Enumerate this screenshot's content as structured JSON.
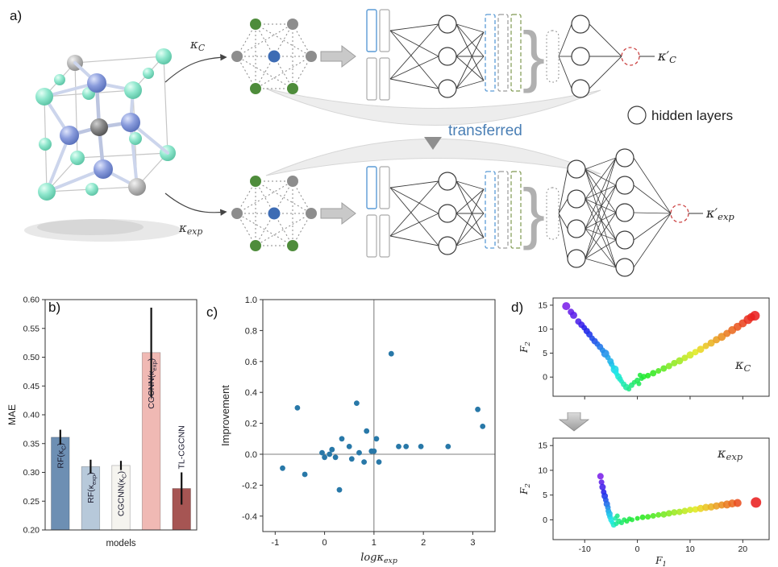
{
  "panels": {
    "a": {
      "label": "a)",
      "kappa_c": "κ~C~",
      "kappa_exp": "κ~exp~",
      "kappa_c_prime": "κ′~C~",
      "kappa_exp_prime": "κ′~exp~",
      "transferred": "transferred",
      "hidden_layers": "hidden layers",
      "brace": "}"
    },
    "b": {
      "label": "b)"
    },
    "c": {
      "label": "c)"
    },
    "d": {
      "label": "d)"
    }
  },
  "colors": {
    "accent_blue": "#4a7fb5",
    "node_green": "#4e8c3b",
    "node_blue": "#3d6cb4",
    "node_gray": "#8d8d8d",
    "dashed_red": "#cc4444",
    "scatter_blue": "#2878a8"
  },
  "chart_data": [
    {
      "id": "mae-bars",
      "type": "bar",
      "title": "",
      "xlabel": "models",
      "ylabel": "MAE",
      "ylim": [
        0.2,
        0.6
      ],
      "yticks": [
        0.2,
        0.25,
        0.3,
        0.35,
        0.4,
        0.45,
        0.5,
        0.55,
        0.6
      ],
      "categories": [
        "RF(κ~C~)",
        "RF(κ~exp~)",
        "CGCNN(κ~C~)",
        "CGCNN(κ~exp~)",
        "TL-CGCNN"
      ],
      "values": [
        0.361,
        0.31,
        0.312,
        0.508,
        0.272
      ],
      "errors": [
        0.013,
        0.012,
        0.008,
        0.078,
        0.028
      ],
      "colors": [
        "#6d8fb3",
        "#b7c9da",
        "#f5f4ef",
        "#f0b9b4",
        "#a65553"
      ],
      "label_inside": [
        true,
        true,
        true,
        true,
        false
      ]
    },
    {
      "id": "improvement-scatter",
      "type": "scatter",
      "xlabel": "logκ~exp~",
      "ylabel": "Improvement",
      "xlim": [
        -1.25,
        3.45
      ],
      "ylim": [
        -0.5,
        1.0
      ],
      "xticks": [
        -1,
        0,
        1,
        2,
        3
      ],
      "yticks": [
        -0.4,
        -0.2,
        0,
        0.2,
        0.4,
        0.6,
        0.8,
        1
      ],
      "vline": 1,
      "hline": 0,
      "color": "#2878a8",
      "points": [
        [
          -0.85,
          -0.09
        ],
        [
          -0.55,
          0.3
        ],
        [
          -0.4,
          -0.13
        ],
        [
          -0.05,
          0.01
        ],
        [
          0.0,
          -0.02
        ],
        [
          0.1,
          0.0
        ],
        [
          0.15,
          0.03
        ],
        [
          0.22,
          -0.02
        ],
        [
          0.3,
          -0.23
        ],
        [
          0.35,
          0.1
        ],
        [
          0.5,
          0.05
        ],
        [
          0.55,
          -0.03
        ],
        [
          0.65,
          0.33
        ],
        [
          0.7,
          0.01
        ],
        [
          0.8,
          -0.05
        ],
        [
          0.85,
          0.15
        ],
        [
          0.95,
          0.02
        ],
        [
          1.0,
          0.02
        ],
        [
          1.05,
          0.1
        ],
        [
          1.1,
          -0.05
        ],
        [
          1.35,
          0.65
        ],
        [
          1.5,
          0.05
        ],
        [
          1.65,
          0.05
        ],
        [
          1.95,
          0.05
        ],
        [
          2.5,
          0.05
        ],
        [
          3.1,
          0.29
        ],
        [
          3.2,
          0.18
        ]
      ]
    },
    {
      "id": "f-scatter-kc",
      "type": "scatter",
      "corner_label": "κ~C~",
      "ylabel": "F~2~",
      "xlim": [
        -16,
        25
      ],
      "ylim": [
        -4,
        16.5
      ],
      "xticks": [
        -10,
        0,
        10,
        20
      ],
      "show_xlabels": false,
      "yticks": [
        0,
        5,
        10,
        15
      ],
      "points": [
        [
          -13.5,
          14.8,
          0.02,
          5
        ],
        [
          -12.6,
          13.6,
          0.04,
          4
        ],
        [
          -12.1,
          12.9,
          0.05,
          4.5
        ],
        [
          -11.2,
          11.6,
          0.07,
          4
        ],
        [
          -10.6,
          10.9,
          0.09,
          4
        ],
        [
          -10.1,
          10.3,
          0.11,
          3.5
        ],
        [
          -9.6,
          9.6,
          0.12,
          4
        ],
        [
          -9.1,
          8.9,
          0.14,
          4
        ],
        [
          -8.6,
          8.1,
          0.16,
          3.5
        ],
        [
          -8.1,
          7.5,
          0.17,
          4
        ],
        [
          -7.6,
          6.9,
          0.19,
          3.5
        ],
        [
          -7.1,
          6.3,
          0.21,
          4
        ],
        [
          -6.6,
          5.6,
          0.23,
          3.5
        ],
        [
          -6.1,
          4.9,
          0.24,
          5
        ],
        [
          -5.6,
          4.1,
          0.26,
          3.5
        ],
        [
          -5.1,
          3.3,
          0.28,
          4
        ],
        [
          -4.9,
          2.7,
          0.29,
          3.5
        ],
        [
          -4.6,
          2.1,
          0.31,
          3
        ],
        [
          -4.3,
          1.6,
          0.32,
          5
        ],
        [
          -4.1,
          1.1,
          0.33,
          3.5
        ],
        [
          -3.9,
          0.6,
          0.34,
          3
        ],
        [
          -3.6,
          0.1,
          0.36,
          4
        ],
        [
          -3.3,
          -0.4,
          0.37,
          3.5
        ],
        [
          -3.0,
          -0.9,
          0.38,
          3
        ],
        [
          -2.6,
          -1.5,
          0.4,
          3.5
        ],
        [
          -2.1,
          -2.1,
          0.42,
          4
        ],
        [
          -1.6,
          -2.5,
          0.44,
          3
        ],
        [
          -1.1,
          -1.7,
          0.46,
          3.5
        ],
        [
          -0.6,
          -1.1,
          0.48,
          3
        ],
        [
          0.0,
          -0.7,
          0.5,
          3.5
        ],
        [
          0.3,
          -1.4,
          0.5,
          3
        ],
        [
          0.8,
          -0.3,
          0.52,
          3
        ],
        [
          1.2,
          0.1,
          0.54,
          3.5
        ],
        [
          0.5,
          0.4,
          0.53,
          3
        ],
        [
          2,
          0.3,
          0.56,
          3.5
        ],
        [
          3,
          0.8,
          0.58,
          4
        ],
        [
          4,
          1.3,
          0.61,
          3.5
        ],
        [
          5,
          1.8,
          0.63,
          4
        ],
        [
          6,
          2.3,
          0.66,
          4
        ],
        [
          7,
          2.9,
          0.68,
          4
        ],
        [
          8,
          3.4,
          0.7,
          4.5
        ],
        [
          9,
          4.0,
          0.73,
          4
        ],
        [
          10,
          4.6,
          0.75,
          4.5
        ],
        [
          11,
          5.2,
          0.77,
          4
        ],
        [
          12,
          5.8,
          0.8,
          4.5
        ],
        [
          13,
          6.5,
          0.82,
          4
        ],
        [
          14,
          7.1,
          0.84,
          4.5
        ],
        [
          15,
          7.8,
          0.86,
          4.5
        ],
        [
          16,
          8.4,
          0.88,
          5
        ],
        [
          17,
          9.1,
          0.9,
          4.5
        ],
        [
          18,
          9.8,
          0.92,
          5
        ],
        [
          19,
          10.5,
          0.94,
          5
        ],
        [
          20,
          11.2,
          0.96,
          5
        ],
        [
          21,
          12.0,
          0.98,
          5.5
        ],
        [
          21.6,
          12.5,
          0.99,
          5
        ],
        [
          22.3,
          12.8,
          1.0,
          6
        ]
      ]
    },
    {
      "id": "f-scatter-kexp",
      "type": "scatter",
      "corner_label": "κ~exp~",
      "xlabel": "F~1~",
      "ylabel": "F~2~",
      "xlim": [
        -16,
        25
      ],
      "ylim": [
        -4,
        16.5
      ],
      "xticks": [
        -10,
        0,
        10,
        20
      ],
      "yticks": [
        0,
        5,
        10,
        15
      ],
      "points": [
        [
          -7.0,
          8.8,
          0.02,
          4
        ],
        [
          -6.8,
          7.6,
          0.05,
          3.5
        ],
        [
          -6.6,
          6.6,
          0.08,
          4
        ],
        [
          -6.4,
          5.6,
          0.11,
          3.5
        ],
        [
          -6.2,
          4.8,
          0.14,
          4
        ],
        [
          -6.0,
          4.0,
          0.17,
          3.5
        ],
        [
          -5.8,
          3.2,
          0.2,
          4
        ],
        [
          -5.6,
          2.5,
          0.23,
          3.5
        ],
        [
          -5.5,
          1.8,
          0.26,
          3.5
        ],
        [
          -5.3,
          1.2,
          0.29,
          4
        ],
        [
          -5.2,
          0.6,
          0.31,
          3.5
        ],
        [
          -5.0,
          0.0,
          0.33,
          3.5
        ],
        [
          -4.8,
          -0.5,
          0.35,
          3
        ],
        [
          -4.5,
          -1.0,
          0.37,
          3.5
        ],
        [
          -4.2,
          0.3,
          0.4,
          3
        ],
        [
          -4.0,
          -0.8,
          0.42,
          3
        ],
        [
          -3.8,
          0.8,
          0.44,
          3
        ],
        [
          -3.5,
          -0.3,
          0.45,
          3.5
        ],
        [
          -3.0,
          -0.6,
          0.47,
          3
        ],
        [
          -2.5,
          0.0,
          0.49,
          3
        ],
        [
          -2.0,
          -0.3,
          0.51,
          3
        ],
        [
          -1.5,
          0.2,
          0.52,
          3
        ],
        [
          -1.0,
          0.0,
          0.53,
          3
        ],
        [
          0,
          0.3,
          0.55,
          3
        ],
        [
          1,
          0.5,
          0.57,
          3.5
        ],
        [
          2,
          0.6,
          0.59,
          3.5
        ],
        [
          3,
          0.8,
          0.61,
          3.5
        ],
        [
          4,
          1.0,
          0.63,
          3.5
        ],
        [
          5,
          1.1,
          0.65,
          4
        ],
        [
          6,
          1.3,
          0.67,
          4
        ],
        [
          7,
          1.5,
          0.69,
          4
        ],
        [
          8,
          1.6,
          0.71,
          4
        ],
        [
          9,
          1.8,
          0.73,
          4
        ],
        [
          10,
          2.0,
          0.75,
          4
        ],
        [
          11,
          2.1,
          0.77,
          4
        ],
        [
          12,
          2.3,
          0.8,
          4.5
        ],
        [
          13,
          2.5,
          0.82,
          4.5
        ],
        [
          14,
          2.6,
          0.84,
          4.5
        ],
        [
          15,
          2.8,
          0.86,
          4.5
        ],
        [
          16,
          3.0,
          0.88,
          4.5
        ],
        [
          17,
          3.1,
          0.9,
          5
        ],
        [
          18,
          3.3,
          0.92,
          5
        ],
        [
          19,
          3.4,
          0.95,
          5
        ],
        [
          22.5,
          3.5,
          1.0,
          6.5
        ]
      ]
    }
  ]
}
